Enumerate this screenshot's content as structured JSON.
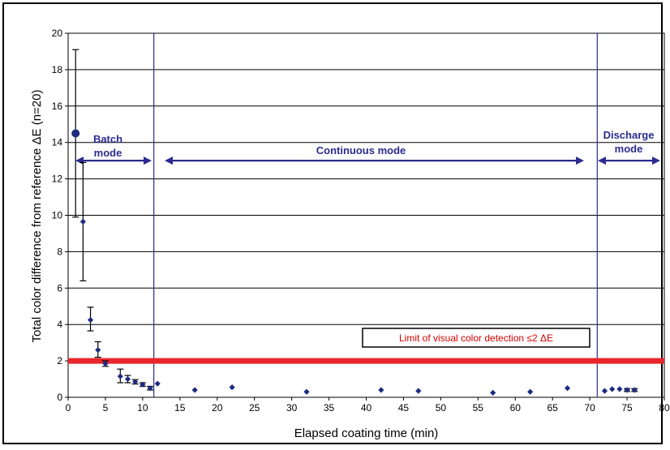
{
  "chart_data": {
    "type": "scatter",
    "title": "",
    "xlabel": "Elapsed coating time (min)",
    "ylabel": "Total color difference from reference ΔE (n=20)",
    "xlim": [
      0,
      80
    ],
    "ylim": [
      0,
      20
    ],
    "x_ticks": [
      0,
      5,
      10,
      15,
      20,
      25,
      30,
      35,
      40,
      45,
      50,
      55,
      60,
      65,
      70,
      75,
      80
    ],
    "y_ticks": [
      0,
      2,
      4,
      6,
      8,
      10,
      12,
      14,
      16,
      18,
      20
    ],
    "grid": "horizontal",
    "colors": {
      "points": "#1f2a80",
      "mode_lines": "#2b2b8f",
      "limit_line": "#e8262b",
      "limit_text": "#d40000",
      "error_bars": "#000000"
    },
    "series": [
      {
        "points": [
          {
            "x": 1,
            "y": 14.5,
            "err_low": 4.6,
            "err_high": 4.6
          },
          {
            "x": 2,
            "y": 9.65,
            "err_low": 3.25,
            "err_high": 3.25
          },
          {
            "x": 3,
            "y": 4.25,
            "err_low": 0.6,
            "err_high": 0.7
          },
          {
            "x": 4,
            "y": 2.6,
            "err_low": 0.4,
            "err_high": 0.45
          },
          {
            "x": 5,
            "y": 1.85,
            "err_low": 0.15,
            "err_high": 0.15
          },
          {
            "x": 7,
            "y": 1.15,
            "err_low": 0.35,
            "err_high": 0.4
          },
          {
            "x": 8,
            "y": 1.0,
            "err_low": 0.2,
            "err_high": 0.2
          },
          {
            "x": 9,
            "y": 0.85,
            "err_low": 0.12,
            "err_high": 0.12
          },
          {
            "x": 10,
            "y": 0.7,
            "err_low": 0.1,
            "err_high": 0.1
          },
          {
            "x": 11,
            "y": 0.5,
            "err_low": 0.1,
            "err_high": 0.1
          },
          {
            "x": 12,
            "y": 0.75,
            "err_low": 0,
            "err_high": 0
          },
          {
            "x": 17,
            "y": 0.4,
            "err_low": 0,
            "err_high": 0
          },
          {
            "x": 22,
            "y": 0.55,
            "err_low": 0,
            "err_high": 0
          },
          {
            "x": 32,
            "y": 0.3,
            "err_low": 0,
            "err_high": 0
          },
          {
            "x": 42,
            "y": 0.4,
            "err_low": 0,
            "err_high": 0
          },
          {
            "x": 47,
            "y": 0.35,
            "err_low": 0,
            "err_high": 0
          },
          {
            "x": 57,
            "y": 0.25,
            "err_low": 0,
            "err_high": 0
          },
          {
            "x": 62,
            "y": 0.3,
            "err_low": 0,
            "err_high": 0
          },
          {
            "x": 67,
            "y": 0.5,
            "err_low": 0,
            "err_high": 0
          },
          {
            "x": 72,
            "y": 0.35,
            "err_low": 0,
            "err_high": 0
          },
          {
            "x": 73,
            "y": 0.45,
            "err_low": 0,
            "err_high": 0
          },
          {
            "x": 74,
            "y": 0.45,
            "err_low": 0,
            "err_high": 0
          },
          {
            "x": 75,
            "y": 0.4,
            "err_low": 0.08,
            "err_high": 0.08
          },
          {
            "x": 76,
            "y": 0.4,
            "err_low": 0.08,
            "err_high": 0.08
          }
        ]
      }
    ],
    "vertical_lines": [
      11.5,
      71
    ],
    "limit_line": {
      "y": 2,
      "label": "Limit of visual color detection ≤2 ΔE"
    },
    "modes": [
      {
        "label_lines": [
          "Batch",
          "mode"
        ],
        "from": 0,
        "to": 11.5
      },
      {
        "label_lines": [
          "Continuous mode"
        ],
        "from": 11.5,
        "to": 71
      },
      {
        "label_lines": [
          "Discharge",
          "mode"
        ],
        "from": 71,
        "to": 80
      }
    ]
  }
}
